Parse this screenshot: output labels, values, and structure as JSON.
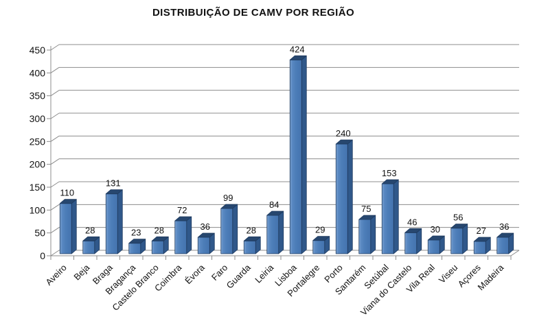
{
  "chart_data": {
    "type": "bar",
    "style": "3d-column",
    "title": "DISTRIBUIÇÃO DE CAMV POR REGIÃO",
    "categories": [
      "Aveiro",
      "Beja",
      "Braga",
      "Bragança",
      "Castelo Branco",
      "Coimbra",
      "Évora",
      "Faro",
      "Guarda",
      "Leiria",
      "Lisboa",
      "Portalegre",
      "Porto",
      "Santarém",
      "Setúbal",
      "Viana do Castelo",
      "Vila Real",
      "Viseu",
      "Açores",
      "Madeira"
    ],
    "values": [
      110,
      28,
      131,
      23,
      28,
      72,
      36,
      99,
      28,
      84,
      424,
      29,
      240,
      75,
      153,
      46,
      30,
      56,
      27,
      36
    ],
    "data_labels_shown": true,
    "xlabel": "",
    "ylabel": "",
    "y_axis": {
      "min": 0,
      "max": 450,
      "step": 50
    },
    "grid": true,
    "legend": "none",
    "colors": {
      "bar_front": "#4C7DB8",
      "bar_front_highlight": "#7FA5D3",
      "bar_front_dark": "#4473AE",
      "bar_side": "#30588A",
      "bar_top": "#27476F",
      "bar_outline": "#1E3A5F",
      "gridline": "#8C8C8C",
      "axis": "#8C8C8C",
      "text": "#111111"
    }
  }
}
